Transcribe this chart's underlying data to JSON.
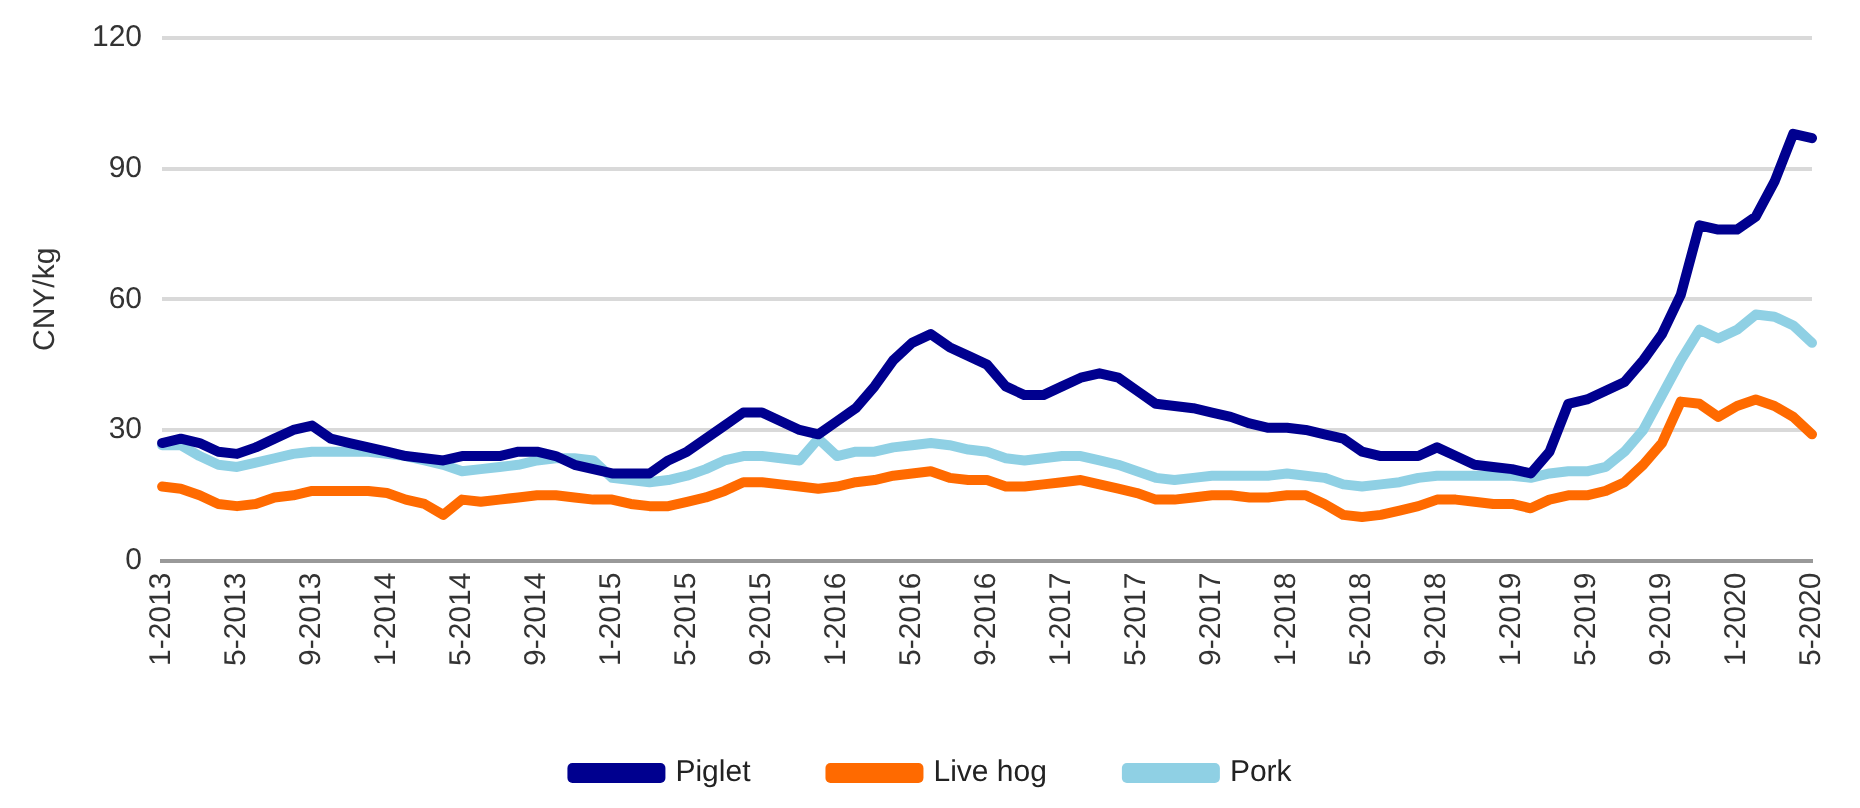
{
  "chart_data": {
    "type": "line",
    "ylabel": "CNY/kg",
    "ylim": [
      0,
      120
    ],
    "yticks": [
      0,
      30,
      60,
      90,
      120
    ],
    "grid": "y",
    "legend": "bottom",
    "marker": "none",
    "line_style": "solid",
    "categories": [
      "1-2013",
      null,
      null,
      null,
      "5-2013",
      null,
      null,
      null,
      "9-2013",
      null,
      null,
      null,
      "1-2014",
      null,
      null,
      null,
      "5-2014",
      null,
      null,
      null,
      "9-2014",
      null,
      null,
      null,
      "1-2015",
      null,
      null,
      null,
      "5-2015",
      null,
      null,
      null,
      "9-2015",
      null,
      null,
      null,
      "1-2016",
      null,
      null,
      null,
      "5-2016",
      null,
      null,
      null,
      "9-2016",
      null,
      null,
      null,
      "1-2017",
      null,
      null,
      null,
      "5-2017",
      null,
      null,
      null,
      "9-2017",
      null,
      null,
      null,
      "1-2018",
      null,
      null,
      null,
      "5-2018",
      null,
      null,
      null,
      "9-2018",
      null,
      null,
      null,
      "1-2019",
      null,
      null,
      null,
      "5-2019",
      null,
      null,
      null,
      "9-2019",
      null,
      null,
      null,
      "1-2020",
      null,
      null,
      null,
      "5-2020"
    ],
    "series": [
      {
        "name": "Piglet",
        "color": "#00008f",
        "values": [
          27,
          28,
          27,
          25,
          24.5,
          26,
          28,
          30,
          31,
          28,
          27,
          26,
          25,
          24,
          23.5,
          23,
          24,
          24,
          24,
          25,
          25,
          24,
          22,
          21,
          20,
          20,
          20,
          23,
          25,
          28,
          31,
          34,
          34,
          32,
          30,
          29,
          32,
          35,
          40,
          46,
          50,
          52,
          49,
          47,
          45,
          40,
          38,
          38,
          40,
          42,
          43,
          42,
          39,
          36,
          35.5,
          35,
          34,
          33,
          31.5,
          30.5,
          30.5,
          30,
          29,
          28,
          25,
          24,
          24,
          24,
          26,
          24,
          22,
          21.5,
          21,
          20,
          25,
          36,
          37,
          39,
          41,
          46,
          52,
          61,
          77,
          76,
          76,
          79,
          87,
          98,
          97
        ]
      },
      {
        "name": "Live hog",
        "color": "#ff6a00",
        "values": [
          17,
          16.5,
          15,
          13,
          12.5,
          13,
          14.5,
          15,
          16,
          16,
          16,
          16,
          15.5,
          14,
          13,
          10.5,
          14,
          13.5,
          14,
          14.5,
          15,
          15,
          14.5,
          14,
          14,
          13,
          12.5,
          12.5,
          13.5,
          14.5,
          16,
          18,
          18,
          17.5,
          17,
          16.5,
          17,
          18,
          18.5,
          19.5,
          20,
          20.5,
          19,
          18.5,
          18.5,
          17,
          17,
          17.5,
          18,
          18.5,
          17.5,
          16.5,
          15.5,
          14,
          14,
          14.5,
          15,
          15,
          14.5,
          14.5,
          15,
          15,
          13,
          10.5,
          10,
          10.5,
          11.5,
          12.5,
          14,
          14,
          13.5,
          13,
          13,
          12,
          14,
          15,
          15,
          16,
          18,
          22,
          27,
          36.5,
          36,
          33,
          35.5,
          37,
          35.5,
          33,
          29
        ]
      },
      {
        "name": "Pork",
        "color": "#8fd0e4",
        "values": [
          26.5,
          26.5,
          24,
          22,
          21.5,
          22.5,
          23.5,
          24.5,
          25,
          25,
          25,
          25,
          24.5,
          24,
          23,
          22,
          20.5,
          21,
          21.5,
          22,
          23,
          23.5,
          23.5,
          23,
          19,
          18.5,
          18,
          18.5,
          19.5,
          21,
          23,
          24,
          24,
          23.5,
          23,
          28,
          24,
          25,
          25,
          26,
          26.5,
          27,
          26.5,
          25.5,
          25,
          23.5,
          23,
          23.5,
          24,
          24,
          23,
          22,
          20.5,
          19,
          18.5,
          19,
          19.5,
          19.5,
          19.5,
          19.5,
          20,
          19.5,
          19,
          17.5,
          17,
          17.5,
          18,
          19,
          19.5,
          19.5,
          19.5,
          19.5,
          19.5,
          19,
          20,
          20.5,
          20.5,
          21.5,
          25,
          30,
          38,
          46,
          53,
          51,
          53,
          56.5,
          56,
          54,
          50
        ]
      }
    ]
  }
}
